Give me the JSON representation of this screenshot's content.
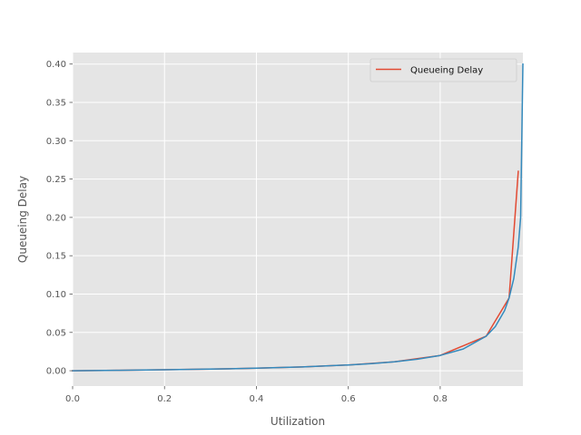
{
  "chart_data": {
    "type": "line",
    "title": "",
    "xlabel": "Utilization",
    "ylabel": "Queueing Delay",
    "xlim": [
      0.0,
      0.98
    ],
    "ylim": [
      -0.02,
      0.415
    ],
    "xticks": [
      0.0,
      0.2,
      0.4,
      0.6,
      0.8
    ],
    "xtick_labels": [
      "0.0",
      "0.2",
      "0.4",
      "0.6",
      "0.8"
    ],
    "yticks": [
      0.0,
      0.05,
      0.1,
      0.15,
      0.2,
      0.25,
      0.3,
      0.35,
      0.4
    ],
    "ytick_labels": [
      "0.00",
      "0.05",
      "0.10",
      "0.15",
      "0.20",
      "0.25",
      "0.30",
      "0.35",
      "0.40"
    ],
    "grid": true,
    "legend_position": "top-right",
    "legend": [
      "Queueing Delay"
    ],
    "series": [
      {
        "name": "Queueing Delay",
        "color": "#E24A33",
        "x": [
          0.0,
          0.1,
          0.2,
          0.3,
          0.4,
          0.5,
          0.6,
          0.7,
          0.8,
          0.9,
          0.95,
          0.97
        ],
        "y": [
          0.0,
          0.0006,
          0.0013,
          0.0021,
          0.0033,
          0.005,
          0.0075,
          0.0117,
          0.02,
          0.045,
          0.095,
          0.26
        ]
      },
      {
        "name": "",
        "color": "#348ABD",
        "x": [
          0.0,
          0.1,
          0.2,
          0.3,
          0.4,
          0.5,
          0.6,
          0.65,
          0.7,
          0.75,
          0.8,
          0.85,
          0.9,
          0.92,
          0.94,
          0.95,
          0.96,
          0.97,
          0.975,
          0.98
        ],
        "y": [
          0.0,
          0.0006,
          0.0013,
          0.0021,
          0.0033,
          0.005,
          0.0075,
          0.0093,
          0.0117,
          0.015,
          0.02,
          0.0283,
          0.045,
          0.0575,
          0.0783,
          0.095,
          0.12,
          0.1617,
          0.2,
          0.4
        ]
      }
    ]
  }
}
